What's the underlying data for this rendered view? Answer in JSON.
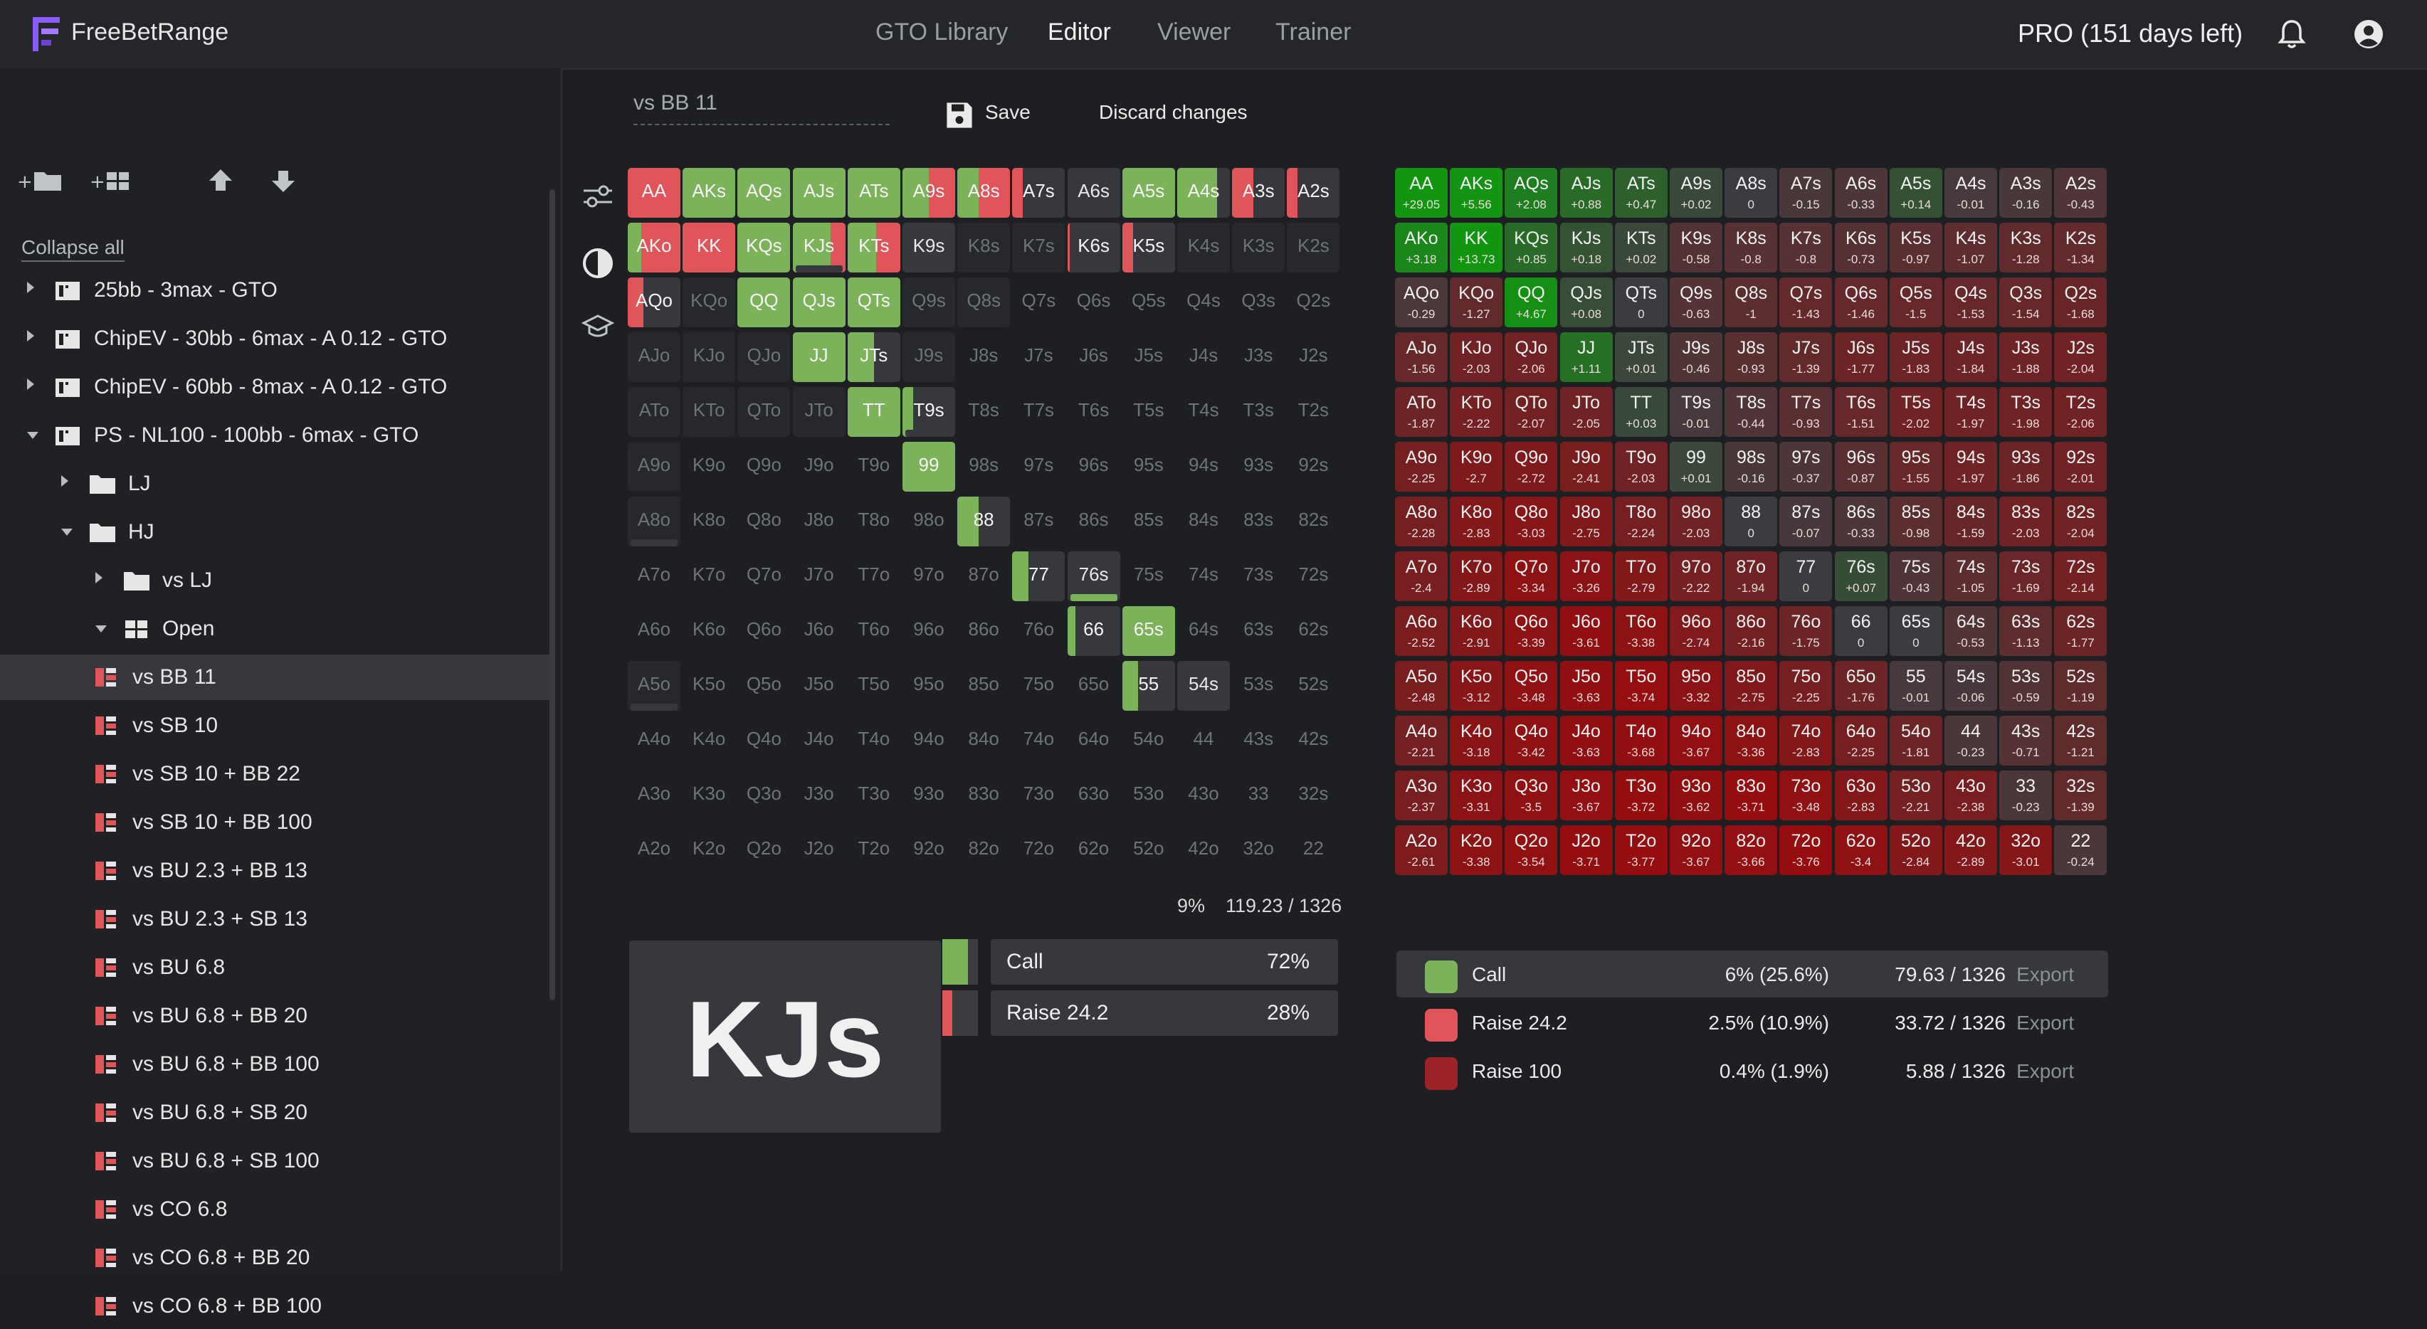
{
  "app": {
    "brand": "FreeBetRange",
    "nav": [
      "GTO Library",
      "Editor",
      "Viewer",
      "Trainer"
    ],
    "nav_active": 1,
    "plan": "PRO (151 days left)"
  },
  "sidebar": {
    "collapse_all": "Collapse all",
    "tree": [
      {
        "label": "25bb - 3max - GTO",
        "level": 0,
        "type": "book",
        "arrow": "right"
      },
      {
        "label": "ChipEV - 30bb - 6max - A 0.12 - GTO",
        "level": 0,
        "type": "book",
        "arrow": "right"
      },
      {
        "label": "ChipEV - 60bb - 8max - A 0.12 - GTO",
        "level": 0,
        "type": "book",
        "arrow": "right"
      },
      {
        "label": "PS - NL100 - 100bb - 6max - GTO",
        "level": 0,
        "type": "book",
        "arrow": "down"
      },
      {
        "label": "LJ",
        "level": 1,
        "type": "folder",
        "arrow": "right"
      },
      {
        "label": "HJ",
        "level": 1,
        "type": "folder",
        "arrow": "down"
      },
      {
        "label": "vs LJ",
        "level": 2,
        "type": "folder",
        "arrow": "right"
      },
      {
        "label": "Open",
        "level": 2,
        "type": "grid",
        "arrow": "down"
      },
      {
        "label": "vs BB 11",
        "level": 3,
        "type": "range",
        "selected": true
      },
      {
        "label": "vs SB 10",
        "level": 3,
        "type": "range"
      },
      {
        "label": "vs SB 10 + BB 22",
        "level": 3,
        "type": "range"
      },
      {
        "label": "vs SB 10 + BB 100",
        "level": 3,
        "type": "range"
      },
      {
        "label": "vs BU 2.3 + BB 13",
        "level": 3,
        "type": "range"
      },
      {
        "label": "vs BU 2.3 + SB 13",
        "level": 3,
        "type": "range"
      },
      {
        "label": "vs BU 6.8",
        "level": 3,
        "type": "range"
      },
      {
        "label": "vs BU 6.8 + BB 20",
        "level": 3,
        "type": "range"
      },
      {
        "label": "vs BU 6.8 + BB 100",
        "level": 3,
        "type": "range"
      },
      {
        "label": "vs BU 6.8 + SB 20",
        "level": 3,
        "type": "range"
      },
      {
        "label": "vs BU 6.8 + SB 100",
        "level": 3,
        "type": "range"
      },
      {
        "label": "vs CO 6.8",
        "level": 3,
        "type": "range"
      },
      {
        "label": "vs CO 6.8 + BB 20",
        "level": 3,
        "type": "range"
      },
      {
        "label": "vs CO 6.8 + BB 100",
        "level": 3,
        "type": "range"
      }
    ]
  },
  "editor": {
    "range_name": "vs BB  11",
    "save": "Save",
    "discard": "Discard changes"
  },
  "colors": {
    "call": "#7cb35a",
    "raise": "#e0555a",
    "raise_big": "#9b2226",
    "fold": "#36383d",
    "empty": "#1e1f22"
  },
  "range_grid": {
    "ranks": [
      "A",
      "K",
      "Q",
      "J",
      "T",
      "9",
      "8",
      "7",
      "6",
      "5",
      "4",
      "3",
      "2"
    ],
    "cells": {
      "AA": {
        "call": 0,
        "raise": 1
      },
      "AKs": {
        "call": 1,
        "raise": 0
      },
      "AQs": {
        "call": 1,
        "raise": 0
      },
      "AJs": {
        "call": 1,
        "raise": 0
      },
      "ATs": {
        "call": 1,
        "raise": 0
      },
      "A9s": {
        "call": 0.5,
        "raise": 0.5
      },
      "A8s": {
        "call": 0.4,
        "raise": 0.6
      },
      "A7s": {
        "call": 0,
        "raise": 0.2
      },
      "A6s": {
        "call": 0,
        "raise": 0
      },
      "A5s": {
        "call": 1,
        "raise": 0
      },
      "A4s": {
        "call": 0.75,
        "raise": 0
      },
      "A3s": {
        "call": 0,
        "raise": 0.4
      },
      "A2s": {
        "call": 0,
        "raise": 0.2
      },
      "AKo": {
        "call": 0.25,
        "raise": 0.75
      },
      "KK": {
        "call": 0,
        "raise": 1
      },
      "KQs": {
        "call": 1,
        "raise": 0
      },
      "KJs": {
        "call": 0.72,
        "raise": 0.28
      },
      "KTs": {
        "call": 0.55,
        "raise": 0.45
      },
      "K9s": {
        "call": 0,
        "raise": 0
      },
      "K6s": {
        "call": 0,
        "raise": 0.05
      },
      "K5s": {
        "call": 0,
        "raise": 0.2
      },
      "AQo": {
        "call": 0,
        "raise": 0.3
      },
      "QQ": {
        "call": 1,
        "raise": 0
      },
      "QJs": {
        "call": 1,
        "raise": 0
      },
      "QTs": {
        "call": 1,
        "raise": 0
      },
      "JJ": {
        "call": 1,
        "raise": 0
      },
      "JTs": {
        "call": 0.5,
        "raise": 0
      },
      "TT": {
        "call": 1,
        "raise": 0
      },
      "T9s": {
        "call": 0.2,
        "raise": 0
      },
      "99": {
        "call": 1,
        "raise": 0
      },
      "88": {
        "call": 0.4,
        "raise": 0
      },
      "77": {
        "call": 0.3,
        "raise": 0
      },
      "76s": {
        "call": 0,
        "raise": 0
      },
      "66": {
        "call": 0.15,
        "raise": 0
      },
      "65s": {
        "call": 1,
        "raise": 0
      },
      "55": {
        "call": 0.3,
        "raise": 0
      },
      "54s": {
        "call": 0,
        "raise": 0
      }
    },
    "active": [
      "AA",
      "AKs",
      "AQs",
      "AJs",
      "ATs",
      "A9s",
      "A8s",
      "A7s",
      "A6s",
      "A5s",
      "A4s",
      "A3s",
      "A2s",
      "AKo",
      "KK",
      "KQs",
      "KJs",
      "KTs",
      "K9s",
      "K6s",
      "K5s",
      "AQo",
      "QQ",
      "QJs",
      "QTs",
      "JJ",
      "JTs",
      "TT",
      "T9s",
      "99",
      "88",
      "77",
      "76s",
      "66",
      "65s",
      "55",
      "54s"
    ],
    "underbars": {
      "T9s": "#36383d",
      "76s": "#7cb35a",
      "54s": "#36383d",
      "A8o": "#36383d",
      "A5o": "#36383d",
      "KJs": "#36383d"
    },
    "faded_cells": [
      "K8s",
      "K7s",
      "K4s",
      "K3s",
      "K2s",
      "KQo",
      "QJo",
      "QTo",
      "JTo",
      "A9o",
      "A8o",
      "A5o",
      "Q9s",
      "Q8s",
      "ATo",
      "KTo",
      "AJo",
      "KJo",
      "J9s"
    ],
    "stats": {
      "pct": "9%",
      "combos": "119.23 / 1326"
    }
  },
  "hand_detail": {
    "hand": "KJs",
    "actions": [
      {
        "name": "Call",
        "pct": "72%",
        "color": "#7cb35a",
        "value": 0.72
      },
      {
        "name": "Raise 24.2",
        "pct": "28%",
        "color": "#e0555a",
        "value": 0.28
      }
    ]
  },
  "ev_grid": {
    "values": {
      "AA": "+29.05",
      "AKs": "+5.56",
      "AQs": "+2.08",
      "AJs": "+0.88",
      "ATs": "+0.47",
      "A9s": "+0.02",
      "A8s": "0",
      "A7s": "-0.15",
      "A6s": "-0.33",
      "A5s": "+0.14",
      "A4s": "-0.01",
      "A3s": "-0.16",
      "A2s": "-0.43",
      "AKo": "+3.18",
      "KK": "+13.73",
      "KQs": "+0.85",
      "KJs": "+0.18",
      "KTs": "+0.02",
      "K9s": "-0.58",
      "K8s": "-0.8",
      "K7s": "-0.8",
      "K6s": "-0.73",
      "K5s": "-0.97",
      "K4s": "-1.07",
      "K3s": "-1.28",
      "K2s": "-1.34",
      "AQo": "-0.29",
      "KQo": "-1.27",
      "QQ": "+4.67",
      "QJs": "+0.08",
      "QTs": "0",
      "Q9s": "-0.63",
      "Q8s": "-1",
      "Q7s": "-1.43",
      "Q6s": "-1.46",
      "Q5s": "-1.5",
      "Q4s": "-1.53",
      "Q3s": "-1.54",
      "Q2s": "-1.68",
      "AJo": "-1.56",
      "KJo": "-2.03",
      "QJo": "-2.06",
      "JJ": "+1.11",
      "JTs": "+0.01",
      "J9s": "-0.46",
      "J8s": "-0.93",
      "J7s": "-1.39",
      "J6s": "-1.77",
      "J5s": "-1.83",
      "J4s": "-1.84",
      "J3s": "-1.88",
      "J2s": "-2.04",
      "ATo": "-1.87",
      "KTo": "-2.22",
      "QTo": "-2.07",
      "JTo": "-2.05",
      "TT": "+0.03",
      "T9s": "-0.01",
      "T8s": "-0.44",
      "T7s": "-0.93",
      "T6s": "-1.51",
      "T5s": "-2.02",
      "T4s": "-1.97",
      "T3s": "-1.98",
      "T2s": "-2.06",
      "A9o": "-2.25",
      "K9o": "-2.7",
      "Q9o": "-2.72",
      "J9o": "-2.41",
      "T9o": "-2.03",
      "99": "+0.01",
      "98s": "-0.16",
      "97s": "-0.37",
      "96s": "-0.87",
      "95s": "-1.55",
      "94s": "-1.97",
      "93s": "-1.86",
      "92s": "-2.01",
      "A8o": "-2.28",
      "K8o": "-2.83",
      "Q8o": "-3.03",
      "J8o": "-2.75",
      "T8o": "-2.24",
      "98o": "-2.03",
      "88": "0",
      "87s": "-0.07",
      "86s": "-0.33",
      "85s": "-0.98",
      "84s": "-1.59",
      "83s": "-2.03",
      "82s": "-2.04",
      "A7o": "-2.4",
      "K7o": "-2.89",
      "Q7o": "-3.34",
      "J7o": "-3.26",
      "T7o": "-2.79",
      "97o": "-2.22",
      "87o": "-1.94",
      "77": "0",
      "76s": "+0.07",
      "75s": "-0.43",
      "74s": "-1.05",
      "73s": "-1.69",
      "72s": "-2.14",
      "A6o": "-2.52",
      "K6o": "-2.91",
      "Q6o": "-3.39",
      "J6o": "-3.61",
      "T6o": "-3.38",
      "96o": "-2.74",
      "86o": "-2.16",
      "76o": "-1.75",
      "66": "0",
      "65s": "0",
      "64s": "-0.53",
      "63s": "-1.13",
      "62s": "-1.77",
      "A5o": "-2.48",
      "K5o": "-3.12",
      "Q5o": "-3.48",
      "J5o": "-3.63",
      "T5o": "-3.74",
      "95o": "-3.32",
      "85o": "-2.75",
      "75o": "-2.25",
      "65o": "-1.76",
      "55": "-0.01",
      "54s": "-0.06",
      "53s": "-0.59",
      "52s": "-1.19",
      "A4o": "-2.21",
      "K4o": "-3.18",
      "Q4o": "-3.42",
      "J4o": "-3.63",
      "T4o": "-3.68",
      "94o": "-3.67",
      "84o": "-3.36",
      "74o": "-2.83",
      "64o": "-2.25",
      "54o": "-1.81",
      "44": "-0.23",
      "43s": "-0.71",
      "42s": "-1.21",
      "A3o": "-2.37",
      "K3o": "-3.31",
      "Q3o": "-3.5",
      "J3o": "-3.67",
      "T3o": "-3.72",
      "93o": "-3.62",
      "83o": "-3.71",
      "73o": "-3.48",
      "63o": "-2.83",
      "53o": "-2.21",
      "43o": "-2.38",
      "33": "-0.23",
      "32s": "-1.39",
      "A2o": "-2.61",
      "K2o": "-3.38",
      "Q2o": "-3.54",
      "J2o": "-3.71",
      "T2o": "-3.77",
      "92o": "-3.67",
      "82o": "-3.66",
      "72o": "-3.76",
      "62o": "-3.4",
      "52o": "-2.84",
      "42o": "-2.89",
      "32o": "-3.01",
      "22": "-0.24"
    }
  },
  "legend": [
    {
      "name": "Call",
      "freq": "6% (25.6%)",
      "combos": "79.63 / 1326",
      "export": "Export",
      "color": "#7cb35a",
      "highlight": true
    },
    {
      "name": "Raise 24.2",
      "freq": "2.5% (10.9%)",
      "combos": "33.72 / 1326",
      "export": "Export",
      "color": "#e0555a"
    },
    {
      "name": "Raise 100",
      "freq": "0.4% (1.9%)",
      "combos": "5.88 / 1326",
      "export": "Export",
      "color": "#9b2226"
    }
  ]
}
